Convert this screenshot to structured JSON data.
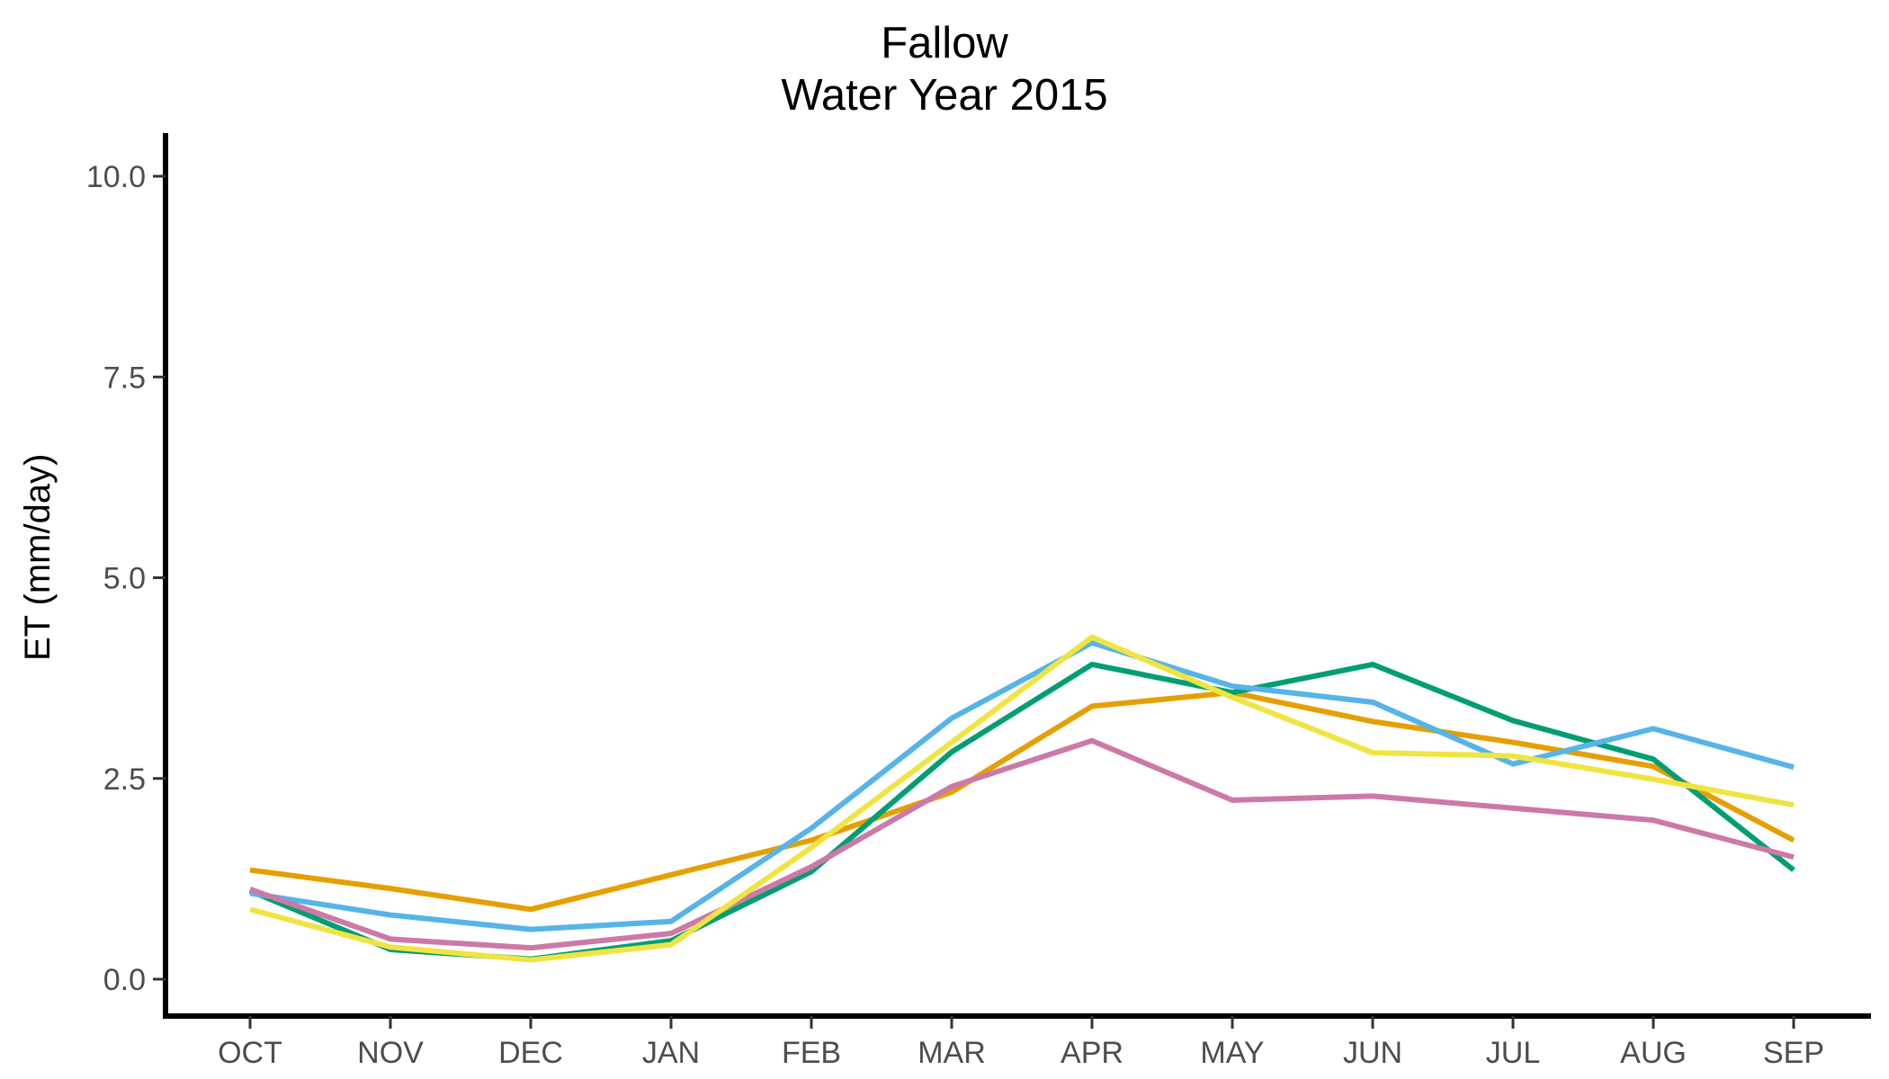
{
  "chart_data": {
    "type": "line",
    "title": "Fallow",
    "subtitle": "Water Year 2015",
    "xlabel": "",
    "ylabel": "ET (mm/day)",
    "categories": [
      "OCT",
      "NOV",
      "DEC",
      "JAN",
      "FEB",
      "MAR",
      "APR",
      "MAY",
      "JUN",
      "JUL",
      "AUG",
      "SEP"
    ],
    "ylim": [
      0,
      10
    ],
    "yticks": [
      "0.0",
      "2.5",
      "5.0",
      "7.5",
      "10.0"
    ],
    "ytick_values": [
      0,
      2.5,
      5,
      7.5,
      10
    ],
    "grid": false,
    "legend": "none",
    "series": [
      {
        "color": "#E69F00",
        "values": [
          1.36,
          1.13,
          0.87,
          1.3,
          1.73,
          2.33,
          3.4,
          3.57,
          3.21,
          2.95,
          2.65,
          1.73
        ]
      },
      {
        "color": "#009E73",
        "values": [
          1.1,
          0.37,
          0.25,
          0.48,
          1.34,
          2.83,
          3.92,
          3.57,
          3.92,
          3.22,
          2.74,
          1.36
        ]
      },
      {
        "color": "#56B4E9",
        "values": [
          1.07,
          0.8,
          0.62,
          0.72,
          1.88,
          3.25,
          4.19,
          3.65,
          3.45,
          2.68,
          3.12,
          2.64
        ]
      },
      {
        "color": "#CC79A7",
        "values": [
          1.12,
          0.5,
          0.39,
          0.57,
          1.4,
          2.4,
          2.97,
          2.23,
          2.28,
          2.13,
          1.98,
          1.52
        ]
      },
      {
        "color": "#F0E442",
        "values": [
          0.87,
          0.4,
          0.24,
          0.43,
          1.64,
          2.95,
          4.26,
          3.51,
          2.82,
          2.78,
          2.49,
          2.17
        ]
      }
    ]
  }
}
